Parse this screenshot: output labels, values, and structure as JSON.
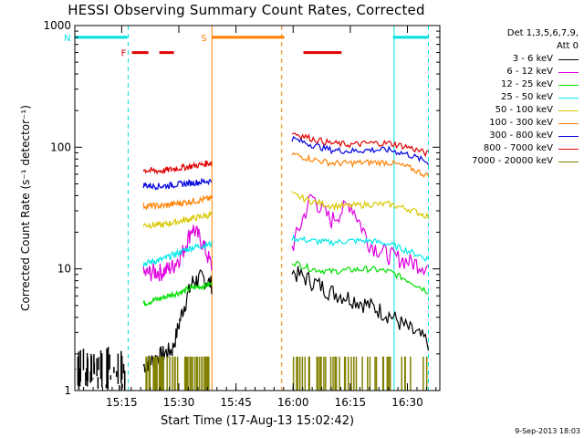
{
  "chart_data": {
    "type": "line",
    "title": "HESSI Observing Summary Count Rates, Corrected",
    "xlabel": "Start Time (17-Aug-13 15:02:42)",
    "ylabel": "Corrected Count Rate (s⁻¹ detector⁻¹)",
    "y_scale": "log",
    "ylim": [
      1,
      1000
    ],
    "xlim": [
      "15:02:42",
      "16:38:30"
    ],
    "x_tick_labels": [
      "15:15",
      "15:30",
      "15:45",
      "16:00",
      "16:15",
      "16:30"
    ],
    "x_tick_minutes": [
      12.3,
      27.3,
      42.3,
      57.3,
      72.3,
      87.3
    ],
    "y_tick_labels": [
      "1",
      "10",
      "100",
      "1000"
    ],
    "y_tick_values": [
      1,
      10,
      100,
      1000
    ],
    "legend_title_line1": "Det 1,3,5,6,7,9,",
    "legend_title_line2": "Att 0",
    "legend_placement": "right",
    "series": [
      {
        "name": "3 - 6 keV",
        "color": "#000000",
        "seg1": [
          1.6,
          1.8,
          2.0,
          2.2,
          4.5,
          7.8,
          8.5,
          7.5
        ],
        "seg2": [
          9.5,
          8.0,
          6.5,
          5.8,
          5.0,
          4.2,
          3.2,
          2.5
        ]
      },
      {
        "name": "6 - 12 keV",
        "color": "#e000e0",
        "seg1": [
          9.0,
          9.5,
          9.5,
          10.5,
          13.5,
          22.0,
          17.0,
          10.5
        ],
        "seg2": [
          15.0,
          40.0,
          25.0,
          35.0,
          16.0,
          13.0,
          11.5,
          10.5
        ]
      },
      {
        "name": "12 - 25 keV",
        "color": "#00e000",
        "seg1": [
          5.2,
          5.5,
          5.8,
          6.2,
          6.5,
          7.0,
          7.2,
          7.5
        ],
        "seg2": [
          11.5,
          10.0,
          9.5,
          9.8,
          10.0,
          9.5,
          8.0,
          6.5
        ]
      },
      {
        "name": "25 - 50 keV",
        "color": "#00e8e8",
        "seg1": [
          11.0,
          11.5,
          12.0,
          13.0,
          14.0,
          15.0,
          15.5,
          16.0
        ],
        "seg2": [
          18.0,
          17.0,
          16.5,
          17.0,
          17.0,
          16.0,
          14.0,
          12.0
        ]
      },
      {
        "name": "50 - 100 keV",
        "color": "#d8c800",
        "seg1": [
          23.0,
          23.0,
          23.0,
          24.0,
          25.0,
          26.0,
          27.0,
          28.0
        ],
        "seg2": [
          41.0,
          36.0,
          33.0,
          33.0,
          34.0,
          34.0,
          31.0,
          27.0
        ]
      },
      {
        "name": "100 - 300 keV",
        "color": "#ff8000",
        "seg1": [
          33.0,
          33.0,
          33.0,
          34.0,
          35.0,
          36.0,
          37.0,
          38.0
        ],
        "seg2": [
          88.0,
          80.0,
          74.0,
          74.0,
          75.0,
          75.0,
          68.0,
          58.0
        ]
      },
      {
        "name": "300 - 800 keV",
        "color": "#0000e0",
        "seg1": [
          49.0,
          48.0,
          48.0,
          49.0,
          50.0,
          51.0,
          52.0,
          53.0
        ],
        "seg2": [
          118.0,
          105.0,
          95.0,
          93.0,
          95.0,
          95.0,
          87.0,
          75.0
        ]
      },
      {
        "name": "800 - 7000 keV",
        "color": "#e00000",
        "seg1": [
          65.0,
          64.0,
          64.0,
          66.0,
          68.0,
          70.0,
          72.0,
          75.0
        ],
        "seg2": [
          132.0,
          118.0,
          108.0,
          105.0,
          108.0,
          108.0,
          100.0,
          88.0
        ]
      },
      {
        "name": "7000 - 20000 keV",
        "color": "#808000",
        "seg1": [],
        "seg2": []
      }
    ],
    "segment_windows_minutes": [
      [
        18.0,
        35.9
      ],
      [
        57.0,
        92.8
      ]
    ],
    "early_black_window_minutes": [
      0.0,
      14.0
    ],
    "bars": [
      {
        "label": "N",
        "color": "#00e0e0",
        "start": 0.0,
        "end": 13.8,
        "level": 800
      },
      {
        "label": "",
        "color": "#00e0e0",
        "start": 83.5,
        "end": 92.8,
        "level": 800
      },
      {
        "label": "F",
        "color": "#e00000",
        "start": 15.0,
        "end": 26.0,
        "level": 600
      },
      {
        "label": "",
        "color": "#e00000",
        "start": 60.0,
        "end": 70.0,
        "level": 600
      },
      {
        "label": "S",
        "color": "#ff8000",
        "start": 36.0,
        "end": 55.0,
        "level": 800
      }
    ],
    "vertical_lines": [
      {
        "color": "#00e0e0",
        "minute": 14.0,
        "dashed": true
      },
      {
        "color": "#ff8000",
        "minute": 36.0,
        "dashed": false
      },
      {
        "color": "#ff8000",
        "minute": 54.3,
        "dashed": true
      },
      {
        "color": "#00e0e0",
        "minute": 83.8,
        "dashed": false
      },
      {
        "color": "#00e0e0",
        "minute": 92.8,
        "dashed": true
      }
    ],
    "grid": false
  },
  "timestamp": "9-Sep-2013 18:03"
}
